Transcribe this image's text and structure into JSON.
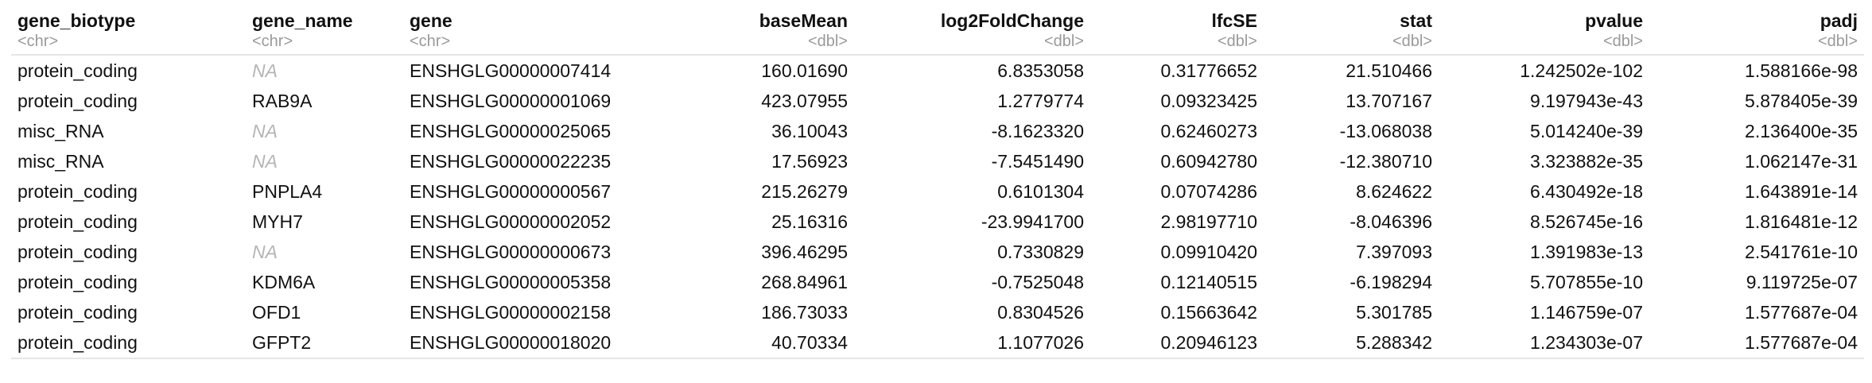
{
  "columns": [
    {
      "name": "gene_biotype",
      "type": "<chr>",
      "align": "left"
    },
    {
      "name": "gene_name",
      "type": "<chr>",
      "align": "left"
    },
    {
      "name": "gene",
      "type": "<chr>",
      "align": "left"
    },
    {
      "name": "baseMean",
      "type": "<dbl>",
      "align": "right"
    },
    {
      "name": "log2FoldChange",
      "type": "<dbl>",
      "align": "right"
    },
    {
      "name": "lfcSE",
      "type": "<dbl>",
      "align": "right"
    },
    {
      "name": "stat",
      "type": "<dbl>",
      "align": "right"
    },
    {
      "name": "pvalue",
      "type": "<dbl>",
      "align": "right"
    },
    {
      "name": "padj",
      "type": "<dbl>",
      "align": "right"
    }
  ],
  "rows": [
    [
      "protein_coding",
      "NA",
      "ENSHGLG00000007414",
      "160.01690",
      "6.8353058",
      "0.31776652",
      "21.510466",
      "1.242502e-102",
      "1.588166e-98"
    ],
    [
      "protein_coding",
      "RAB9A",
      "ENSHGLG00000001069",
      "423.07955",
      "1.2779774",
      "0.09323425",
      "13.707167",
      "9.197943e-43",
      "5.878405e-39"
    ],
    [
      "misc_RNA",
      "NA",
      "ENSHGLG00000025065",
      "36.10043",
      "-8.1623320",
      "0.62460273",
      "-13.068038",
      "5.014240e-39",
      "2.136400e-35"
    ],
    [
      "misc_RNA",
      "NA",
      "ENSHGLG00000022235",
      "17.56923",
      "-7.5451490",
      "0.60942780",
      "-12.380710",
      "3.323882e-35",
      "1.062147e-31"
    ],
    [
      "protein_coding",
      "PNPLA4",
      "ENSHGLG00000000567",
      "215.26279",
      "0.6101304",
      "0.07074286",
      "8.624622",
      "6.430492e-18",
      "1.643891e-14"
    ],
    [
      "protein_coding",
      "MYH7",
      "ENSHGLG00000002052",
      "25.16316",
      "-23.9941700",
      "2.98197710",
      "-8.046396",
      "8.526745e-16",
      "1.816481e-12"
    ],
    [
      "protein_coding",
      "NA",
      "ENSHGLG00000000673",
      "396.46295",
      "0.7330829",
      "0.09910420",
      "7.397093",
      "1.391983e-13",
      "2.541761e-10"
    ],
    [
      "protein_coding",
      "KDM6A",
      "ENSHGLG00000005358",
      "268.84961",
      "-0.7525048",
      "0.12140515",
      "-6.198294",
      "5.707855e-10",
      "9.119725e-07"
    ],
    [
      "protein_coding",
      "OFD1",
      "ENSHGLG00000002158",
      "186.73033",
      "0.8304526",
      "0.15663642",
      "5.301785",
      "1.146759e-07",
      "1.577687e-04"
    ],
    [
      "protein_coding",
      "GFPT2",
      "ENSHGLG00000018020",
      "40.70334",
      "1.1077026",
      "0.20946123",
      "5.288342",
      "1.234303e-07",
      "1.577687e-04"
    ]
  ]
}
